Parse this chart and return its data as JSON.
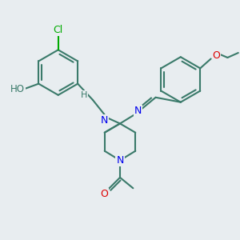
{
  "bg_color": "#e8edf0",
  "bond_color": "#3a7a6a",
  "bond_width": 1.5,
  "atom_colors": {
    "N": "#0000ee",
    "O": "#dd0000",
    "Cl": "#00aa00",
    "C": "#3a7a6a"
  }
}
